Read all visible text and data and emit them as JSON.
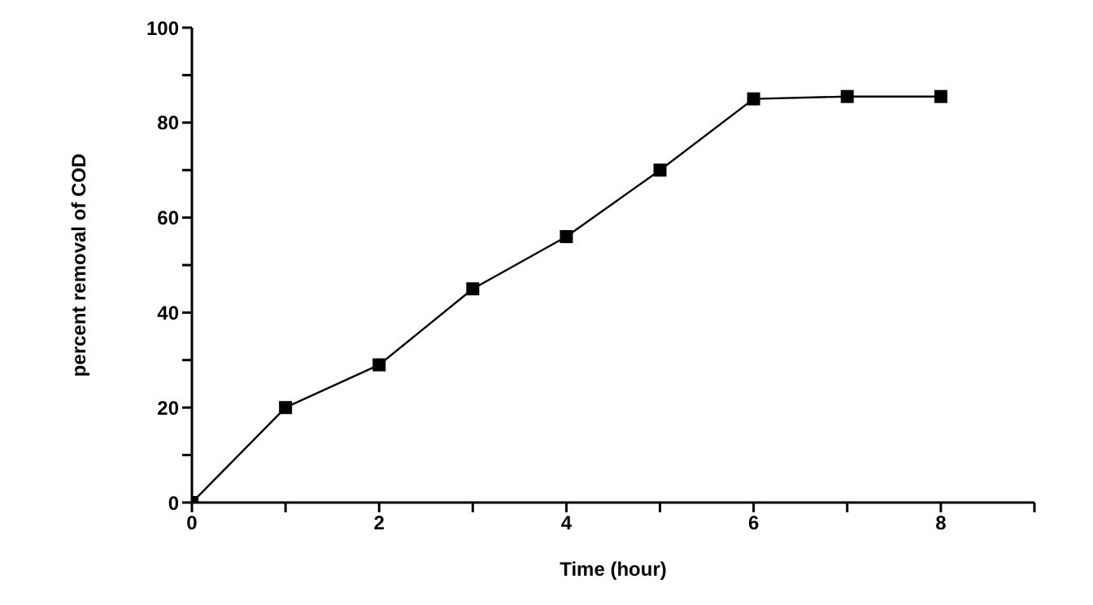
{
  "chart_data": {
    "type": "line",
    "xlabel": "Time (hour)",
    "ylabel": "percent removal of COD",
    "x": [
      0,
      1,
      2,
      3,
      4,
      5,
      6,
      7,
      8
    ],
    "series": [
      {
        "color": "#000000",
        "values": [
          0,
          20,
          29,
          45,
          56,
          70,
          85,
          85.5,
          85.5
        ]
      }
    ],
    "xlim": [
      0,
      9
    ],
    "xticks": [
      0,
      {
        "value": 1,
        "label": null
      },
      2,
      {
        "value": 3,
        "label": null
      },
      4,
      {
        "value": 5,
        "label": null
      },
      6,
      {
        "value": 7,
        "label": null
      },
      8,
      {
        "value": 9,
        "label": null
      }
    ],
    "ylim": [
      0,
      100
    ],
    "yticks": [
      0,
      {
        "value": 10,
        "label": null
      },
      20,
      {
        "value": 30,
        "label": null
      },
      40,
      {
        "value": 50,
        "label": null
      },
      60,
      {
        "value": 70,
        "label": null
      },
      80,
      {
        "value": 90,
        "label": null
      },
      100
    ],
    "marker": "square",
    "line_style": "solid"
  }
}
